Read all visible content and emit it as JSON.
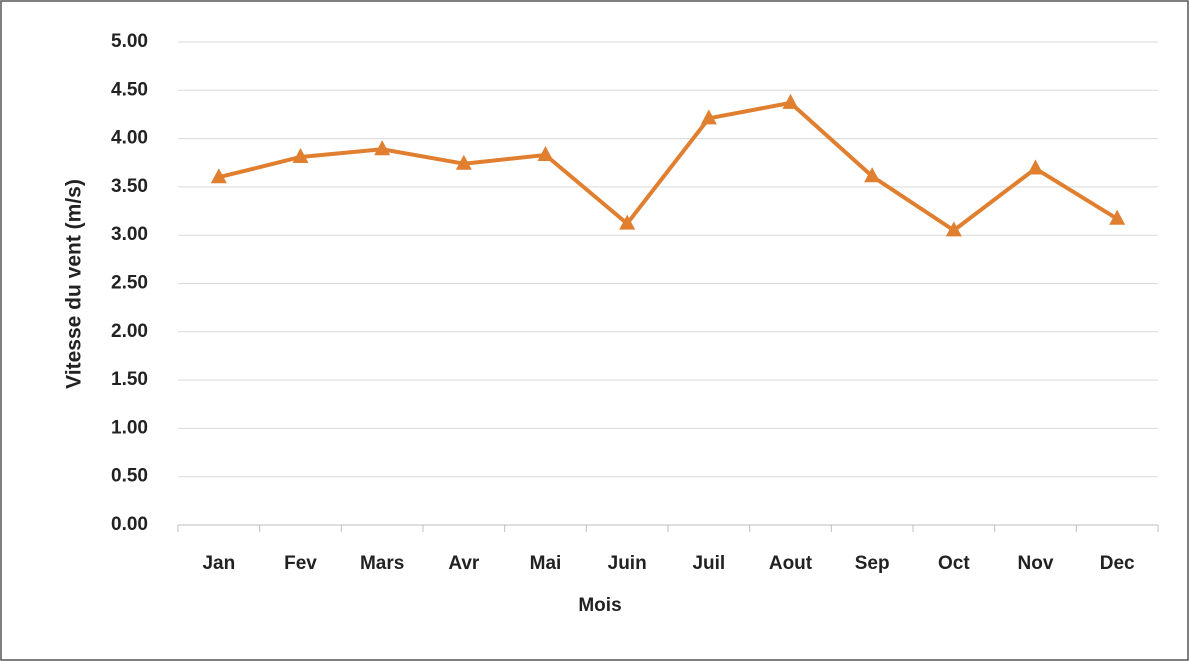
{
  "chart_data": {
    "type": "line",
    "x_label": "Mois",
    "y_label": "Vitesse du vent (m/s)",
    "categories": [
      "Jan",
      "Fev",
      "Mars",
      "Avr",
      "Mai",
      "Juin",
      "Juil",
      "Aout",
      "Sep",
      "Oct",
      "Nov",
      "Dec"
    ],
    "series": [
      {
        "name": "Vitesse du vent",
        "color": "#e07f2f",
        "values": [
          3.6,
          3.81,
          3.89,
          3.74,
          3.83,
          3.12,
          4.21,
          4.37,
          3.61,
          3.05,
          3.69,
          3.17
        ]
      }
    ],
    "ylim": [
      0,
      5
    ],
    "yticks": [
      {
        "value": 0,
        "label": "0.00"
      },
      {
        "value": 0.5,
        "label": "0.50"
      },
      {
        "value": 1,
        "label": "1.00"
      },
      {
        "value": 1.5,
        "label": "1.50"
      },
      {
        "value": 2,
        "label": "2.00"
      },
      {
        "value": 2.5,
        "label": "2.50"
      },
      {
        "value": 3,
        "label": "3.00"
      },
      {
        "value": 3.5,
        "label": "3.50"
      },
      {
        "value": 4,
        "label": "4.00"
      },
      {
        "value": 4.5,
        "label": "4.50"
      },
      {
        "value": 5,
        "label": "5.00"
      }
    ],
    "grid": true,
    "marker": "triangle"
  }
}
